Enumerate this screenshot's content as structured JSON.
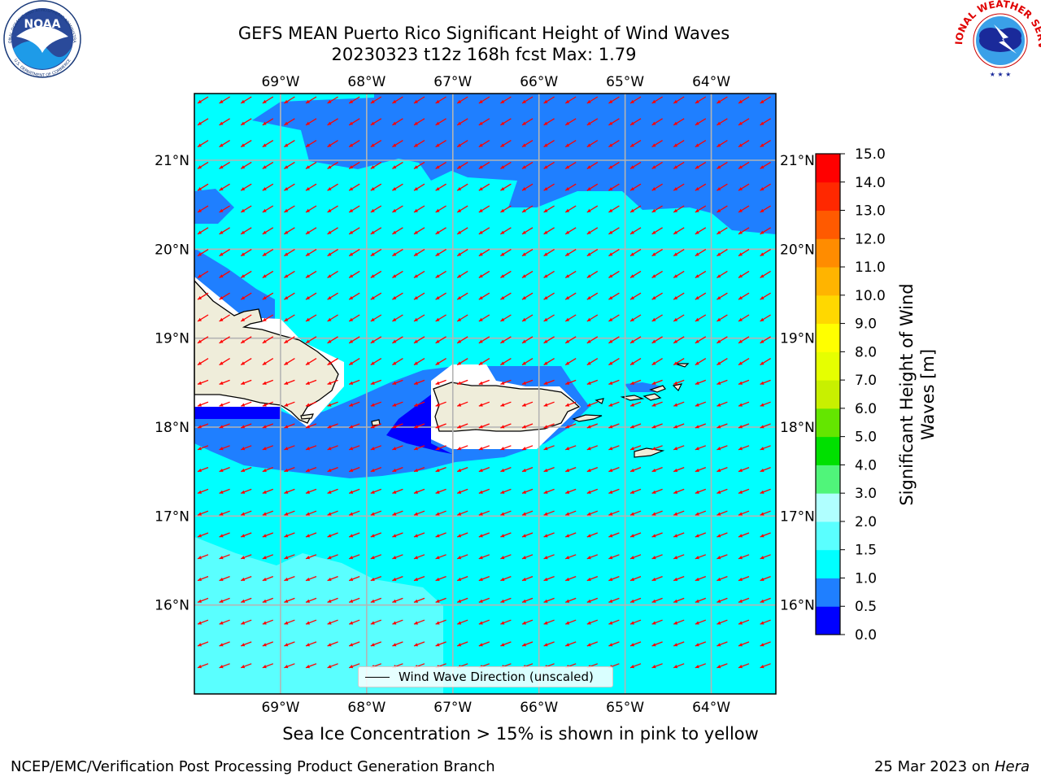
{
  "title": {
    "line1": "GEFS MEAN Puerto Rico Significant Height of Wind Waves",
    "line2": "20230323 t12z 168h fcst   Max: 1.79"
  },
  "map": {
    "lon_range": [
      -70.0,
      -63.25
    ],
    "lat_range": [
      15.0,
      21.75
    ],
    "lon_ticks": [
      {
        "value": -69,
        "label": "69°W"
      },
      {
        "value": -68,
        "label": "68°W"
      },
      {
        "value": -67,
        "label": "67°W"
      },
      {
        "value": -66,
        "label": "66°W"
      },
      {
        "value": -65,
        "label": "65°W"
      },
      {
        "value": -64,
        "label": "64°W"
      }
    ],
    "lat_ticks": [
      {
        "value": 21,
        "label": "21°N"
      },
      {
        "value": 20,
        "label": "20°N"
      },
      {
        "value": 19,
        "label": "19°N"
      },
      {
        "value": 18,
        "label": "18°N"
      },
      {
        "value": 17,
        "label": "17°N"
      },
      {
        "value": 16,
        "label": "16°N"
      }
    ],
    "arrow_color": "#ff0000",
    "land_color": "#efedda",
    "gridlines": true
  },
  "legend": {
    "label": "Wind Wave Direction (unscaled)",
    "placement": "bottom-center"
  },
  "colorbar": {
    "label": "Significant Height of Wind Waves [m]",
    "levels": [
      0.0,
      0.5,
      1.0,
      1.5,
      2.0,
      3.0,
      4.0,
      5.0,
      6.0,
      7.0,
      8.0,
      9.0,
      10.0,
      11.0,
      12.0,
      13.0,
      14.0,
      15.0
    ],
    "tick_labels": [
      "0.0",
      "0.5",
      "1.0",
      "1.5",
      "2.0",
      "3.0",
      "4.0",
      "5.0",
      "6.0",
      "7.0",
      "8.0",
      "9.0",
      "10.0",
      "11.0",
      "12.0",
      "13.0",
      "14.0",
      "15.0"
    ],
    "colors": [
      "#0000ff",
      "#1f7fff",
      "#00ffff",
      "#5affff",
      "#b0ffff",
      "#50f57a",
      "#00e000",
      "#64e600",
      "#c8f000",
      "#e6ff00",
      "#ffff00",
      "#ffd800",
      "#ffb400",
      "#ff8c00",
      "#ff5a00",
      "#ff2800",
      "#ff0000"
    ]
  },
  "sea_ice_note": "Sea Ice Concentration > 15% is shown in pink to yellow",
  "footer": {
    "left": "NCEP/EMC/Verification Post Processing Product Generation Branch",
    "right_prefix": "25 Mar 2023 on ",
    "right_host": "Hera"
  },
  "logos": {
    "left": "NOAA",
    "right": "NATIONAL WEATHER SERVICE"
  }
}
